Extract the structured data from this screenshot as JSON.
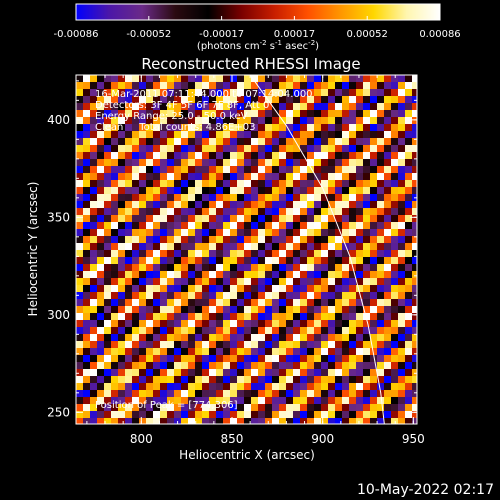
{
  "colorbar": {
    "ticks": [
      "-0.00086",
      "-0.00052",
      "-0.00017",
      "0.00017",
      "0.00052",
      "0.00086"
    ],
    "units_prefix": "(photons cm",
    "units_exp1": "-2",
    "units_mid1": " s",
    "units_exp2": "-1",
    "units_mid2": " asec",
    "units_exp3": "-2",
    "units_suffix": ")",
    "colors": [
      "#0000ff",
      "#4b16a8",
      "#6a2a88",
      "#2a0a10",
      "#000000",
      "#7a0000",
      "#c81e00",
      "#ff5000",
      "#ff9600",
      "#ffd700",
      "#fff6b0",
      "#ffffff"
    ]
  },
  "chart_data": {
    "type": "heatmap",
    "title": "Reconstructed RHESSI Image",
    "xlabel": "Heliocentric X (arcsec)",
    "ylabel": "Heliocentric Y (arcsec)",
    "xlim": [
      764,
      952
    ],
    "ylim": [
      244,
      423
    ],
    "xticks": [
      800,
      850,
      900,
      950
    ],
    "yticks": [
      250,
      300,
      350,
      400
    ],
    "value_range": [
      -0.00086,
      0.00086
    ],
    "grid": false,
    "annotations": {
      "line1": "16-Mar-2011 07:11:44.000 to 07:14:04.000",
      "line2": "Detectors: 3F 4F 5F 6F 7F 8F, Att 0",
      "line3": "Energy Range: 25.0 - 50.0 keV",
      "line4": "Clean     Total counts: 4.86E+03",
      "peak": "Position of Peak = [774,306]"
    },
    "limb_curve": [
      {
        "x": 860,
        "y": 423
      },
      {
        "x": 880,
        "y": 397
      },
      {
        "x": 900,
        "y": 365
      },
      {
        "x": 915,
        "y": 330
      },
      {
        "x": 925,
        "y": 295
      },
      {
        "x": 932,
        "y": 260
      },
      {
        "x": 934,
        "y": 244
      }
    ]
  },
  "footer": {
    "date": "10-May-2022 02:17"
  }
}
